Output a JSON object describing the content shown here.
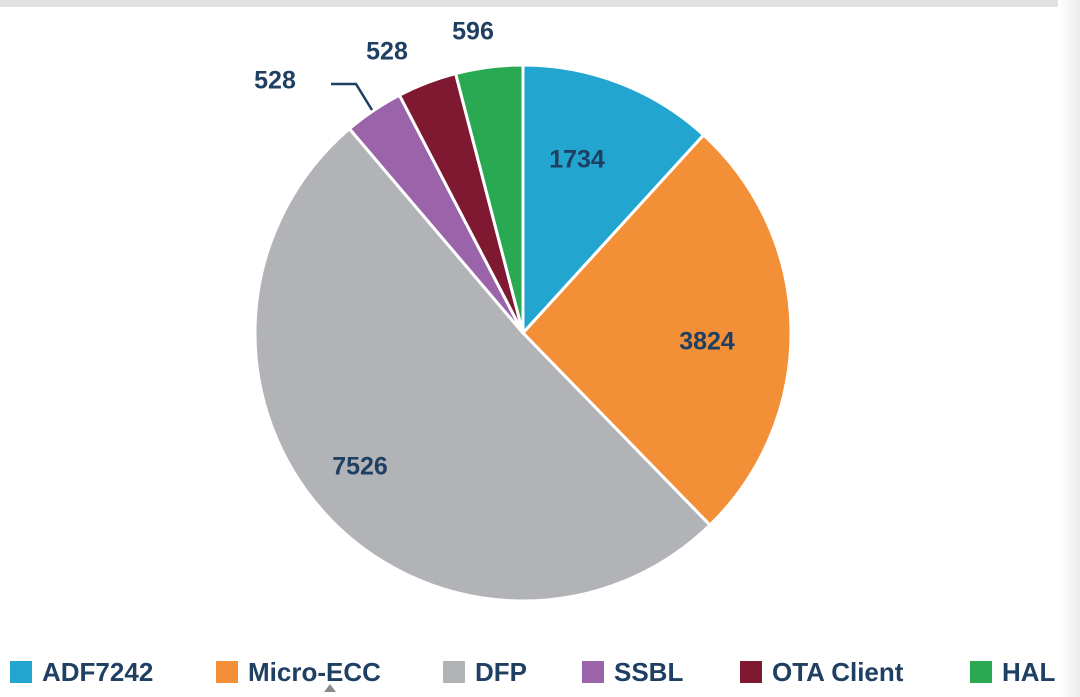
{
  "chart_data": {
    "type": "pie",
    "labels": [
      "ADF7242",
      "Micro-ECC",
      "DFP",
      "SSBL",
      "OTA Client",
      "HAL"
    ],
    "values": [
      1734,
      3824,
      7526,
      528,
      528,
      596
    ],
    "value_labels": [
      "1734",
      "3824",
      "7526",
      "528",
      "528",
      "596"
    ],
    "colors": [
      "#22a6d0",
      "#f28f37",
      "#b2b3b7",
      "#9a63aa",
      "#7e1931",
      "#29a952"
    ],
    "start_angle_deg": 0,
    "direction": "clockwise",
    "legend_position": "bottom"
  }
}
